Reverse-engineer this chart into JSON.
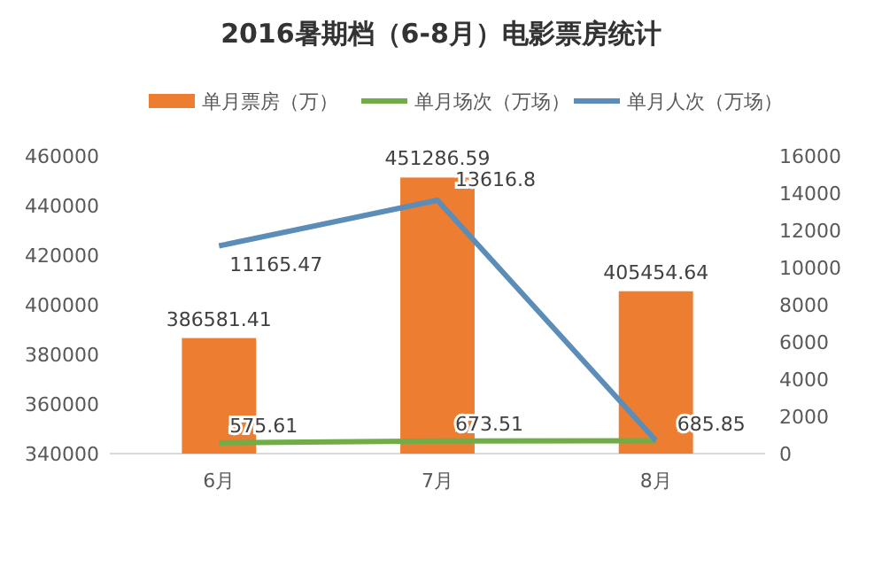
{
  "chart_data": {
    "type": "bar",
    "title": "2016暑期档（6-8月）电影票房统计",
    "categories": [
      "6月",
      "7月",
      "8月"
    ],
    "series": [
      {
        "name": "单月票房（万）",
        "color": "#ed7d31",
        "values": [
          386581.41,
          451286.59,
          405454.64
        ],
        "value_labels": [
          "386581.41",
          "451286.59",
          "405454.64"
        ]
      },
      {
        "name": "单月场次（万场）",
        "type": "line",
        "axis": "y2",
        "color": "#70ad47",
        "values": [
          575.61,
          673.51,
          685.85
        ],
        "value_labels": [
          "575.61",
          "673.51",
          "685.85"
        ]
      },
      {
        "name": "单月人次（万场）",
        "type": "line",
        "axis": "y2",
        "color": "#5b8db8",
        "values": [
          11165.47,
          13616.8,
          700
        ],
        "value_labels": [
          "11165.47",
          "13616.8",
          null
        ]
      }
    ],
    "ylim": [
      340000,
      460000
    ],
    "yticks": [
      340000,
      360000,
      380000,
      400000,
      420000,
      440000,
      460000
    ],
    "y2lim": [
      0,
      16000
    ],
    "y2ticks": [
      0,
      2000,
      4000,
      6000,
      8000,
      10000,
      12000,
      14000,
      16000
    ],
    "legend": "top",
    "grid": false
  }
}
